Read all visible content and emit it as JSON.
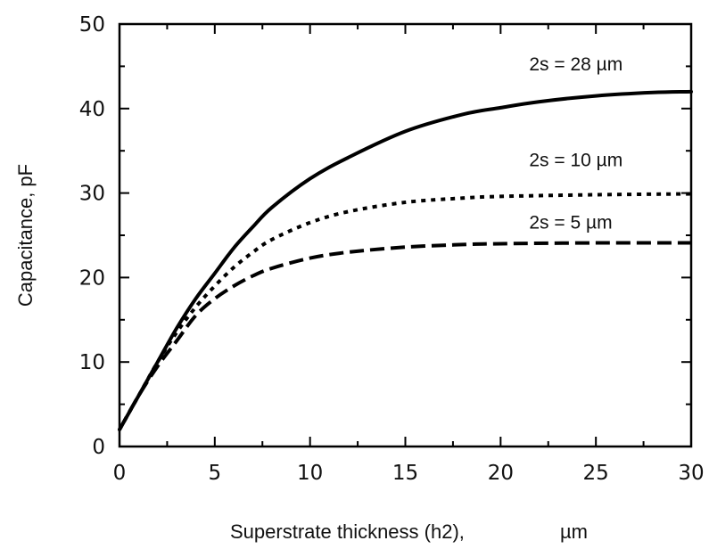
{
  "chart_data": {
    "type": "line",
    "title": "",
    "xlabel": "Superstrate thickness (h2),",
    "xlabel_unit": "µm",
    "ylabel": "Capacitance, pF",
    "xlim": [
      0,
      30
    ],
    "ylim": [
      0,
      50
    ],
    "xticks": [
      "0",
      "5",
      "10",
      "15",
      "20",
      "25",
      "30"
    ],
    "yticks": [
      "0",
      "10",
      "20",
      "30",
      "40",
      "50"
    ],
    "grid": false,
    "series": [
      {
        "name": "2s = 28 µm",
        "style": "solid",
        "x": [
          0,
          1,
          2,
          3,
          4,
          5,
          6,
          7,
          8,
          10,
          12,
          15,
          18,
          20,
          22,
          25,
          28,
          30
        ],
        "y": [
          2,
          6,
          10,
          14,
          17.5,
          20.5,
          23.5,
          26,
          28.3,
          31.7,
          34.2,
          37.3,
          39.3,
          40.1,
          40.8,
          41.5,
          41.9,
          42
        ]
      },
      {
        "name": "2s = 10 µm",
        "style": "dotted",
        "x": [
          0,
          1,
          2,
          3,
          4,
          5,
          6,
          7,
          8,
          10,
          12,
          15,
          18,
          20,
          25,
          30
        ],
        "y": [
          2,
          6,
          10,
          13.5,
          16.5,
          19,
          21.2,
          23,
          24.5,
          26.5,
          27.8,
          28.9,
          29.4,
          29.6,
          29.8,
          29.9
        ]
      },
      {
        "name": "2s = 5 µm",
        "style": "dashed",
        "x": [
          0,
          1,
          2,
          3,
          4,
          5,
          6,
          7,
          8,
          10,
          12,
          15,
          18,
          20,
          25,
          30
        ],
        "y": [
          2,
          6,
          9.5,
          12.5,
          15.5,
          17.5,
          19,
          20.2,
          21.1,
          22.3,
          23,
          23.6,
          23.9,
          24,
          24.1,
          24.1
        ]
      }
    ],
    "annotations": [
      {
        "text": "2s = 28  µm",
        "x": 21.5,
        "y": 44.5
      },
      {
        "text": "2s = 10  µm",
        "x": 21.5,
        "y": 33.2
      },
      {
        "text": "2s = 5  µm",
        "x": 21.5,
        "y": 25.8
      }
    ]
  }
}
